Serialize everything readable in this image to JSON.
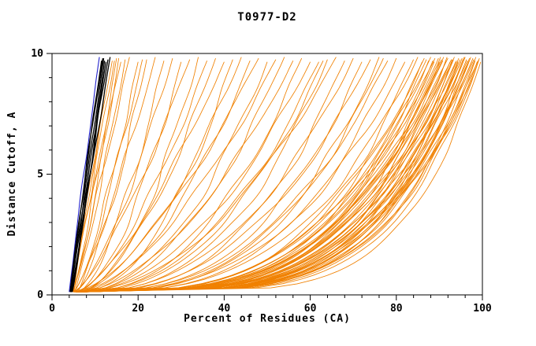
{
  "chart_data": {
    "type": "line",
    "title": "T0977-D2",
    "xlabel": "Percent of Residues (CA)",
    "ylabel": "Distance Cutoff, A",
    "xlim": [
      0,
      100
    ],
    "ylim": [
      0,
      10
    ],
    "xticks": [
      0,
      20,
      40,
      60,
      80,
      100
    ],
    "x_minor_step": 4,
    "yticks": [
      0,
      5,
      10
    ],
    "y_minor_step": 1,
    "y_curve_start": 0.12,
    "y_curve_top": 9.65,
    "colors": [
      "#f08000",
      "#000000",
      "#2323cc"
    ],
    "color_names": [
      "orange",
      "black",
      "blue"
    ],
    "legend": "none",
    "grid": false,
    "series_note": "each curve = [x_at_bottom_pct, x_at_top_pct, shape_exponent, wiggle_amplitude, color_index]",
    "curves": [
      [
        5.0,
        20,
        0.75,
        1.0,
        0
      ],
      [
        5.5,
        22,
        0.7,
        1.2,
        0
      ],
      [
        5.0,
        24,
        0.8,
        1.0,
        0
      ],
      [
        6.0,
        26,
        0.65,
        1.3,
        0
      ],
      [
        5.2,
        28,
        0.7,
        1.1,
        0
      ],
      [
        5.8,
        30,
        0.6,
        1.4,
        0
      ],
      [
        5.0,
        32,
        0.75,
        1.2,
        0
      ],
      [
        6.2,
        34,
        0.55,
        1.5,
        0
      ],
      [
        5.4,
        36,
        0.65,
        1.3,
        0
      ],
      [
        6.0,
        38,
        0.6,
        1.4,
        0
      ],
      [
        5.6,
        40,
        0.7,
        1.2,
        0
      ],
      [
        6.4,
        42,
        0.5,
        1.6,
        0
      ],
      [
        5.8,
        44,
        0.6,
        1.4,
        0
      ],
      [
        6.0,
        46,
        0.55,
        1.5,
        0
      ],
      [
        5.2,
        48,
        0.65,
        1.3,
        0
      ],
      [
        6.6,
        50,
        0.5,
        1.6,
        0
      ],
      [
        5.4,
        52,
        0.6,
        1.4,
        0
      ],
      [
        6.2,
        54,
        0.5,
        1.5,
        0
      ],
      [
        5.6,
        56,
        0.55,
        1.4,
        0
      ],
      [
        6.8,
        58,
        0.45,
        1.6,
        0
      ],
      [
        5.8,
        60,
        0.5,
        1.5,
        0
      ],
      [
        6.0,
        21,
        0.85,
        0.9,
        0
      ],
      [
        4.5,
        13.5,
        0.95,
        0.5,
        0
      ],
      [
        4.8,
        14.5,
        1.0,
        0.6,
        0
      ],
      [
        5.0,
        15.0,
        0.9,
        0.6,
        0
      ],
      [
        4.6,
        16.0,
        1.05,
        0.7,
        0
      ],
      [
        5.2,
        17.0,
        0.85,
        0.7,
        0
      ],
      [
        4.9,
        18.0,
        0.95,
        0.8,
        0
      ],
      [
        5.1,
        14.0,
        1.1,
        0.5,
        0
      ],
      [
        4.7,
        15.5,
        0.8,
        0.6,
        0
      ],
      [
        6.0,
        62,
        0.45,
        1.5,
        0
      ],
      [
        6.5,
        64,
        0.4,
        1.6,
        0
      ],
      [
        5.5,
        66,
        0.5,
        1.4,
        0
      ],
      [
        7.0,
        68,
        0.38,
        1.7,
        0
      ],
      [
        6.0,
        70,
        0.42,
        1.5,
        0
      ],
      [
        6.5,
        72,
        0.36,
        1.6,
        0
      ],
      [
        5.8,
        74,
        0.4,
        1.5,
        0
      ],
      [
        7.2,
        76,
        0.34,
        1.7,
        0
      ],
      [
        6.2,
        78,
        0.38,
        1.5,
        0
      ],
      [
        6.8,
        80,
        0.33,
        1.6,
        0
      ],
      [
        5.6,
        82,
        0.36,
        1.4,
        0
      ],
      [
        7.0,
        84,
        0.3,
        1.6,
        0
      ],
      [
        6.4,
        85,
        0.34,
        1.5,
        0
      ],
      [
        6.6,
        63,
        0.44,
        1.5,
        0
      ],
      [
        5.9,
        77,
        0.35,
        1.5,
        0
      ],
      [
        6.0,
        86,
        0.3,
        1.4,
        0
      ],
      [
        6.5,
        87,
        0.28,
        1.5,
        0
      ],
      [
        7.0,
        88,
        0.32,
        1.3,
        0
      ],
      [
        5.5,
        88.5,
        0.27,
        1.5,
        0
      ],
      [
        6.2,
        89,
        0.3,
        1.4,
        0
      ],
      [
        6.8,
        90,
        0.26,
        1.5,
        0
      ],
      [
        7.4,
        90.5,
        0.3,
        1.3,
        0
      ],
      [
        5.8,
        91,
        0.28,
        1.5,
        0
      ],
      [
        6.4,
        91.5,
        0.25,
        1.4,
        0
      ],
      [
        7.0,
        92,
        0.3,
        1.3,
        0
      ],
      [
        6.0,
        92.5,
        0.27,
        1.5,
        0
      ],
      [
        6.6,
        93,
        0.24,
        1.4,
        0
      ],
      [
        7.2,
        93.5,
        0.28,
        1.3,
        0
      ],
      [
        5.6,
        94,
        0.26,
        1.5,
        0
      ],
      [
        6.2,
        94.5,
        0.23,
        1.4,
        0
      ],
      [
        6.8,
        95,
        0.27,
        1.3,
        0
      ],
      [
        7.4,
        95.5,
        0.25,
        1.4,
        0
      ],
      [
        5.9,
        96,
        0.22,
        1.5,
        0
      ],
      [
        6.5,
        96.5,
        0.26,
        1.3,
        0
      ],
      [
        7.1,
        97,
        0.24,
        1.4,
        0
      ],
      [
        6.1,
        97.5,
        0.22,
        1.3,
        0
      ],
      [
        6.7,
        98,
        0.25,
        1.2,
        0
      ],
      [
        7.3,
        98.5,
        0.23,
        1.3,
        0
      ],
      [
        5.7,
        99,
        0.24,
        1.2,
        0
      ],
      [
        6.3,
        99.3,
        0.22,
        1.1,
        0
      ],
      [
        6.9,
        93.8,
        0.26,
        1.4,
        0
      ],
      [
        6.1,
        94.8,
        0.24,
        1.3,
        0
      ],
      [
        6.5,
        95.8,
        0.26,
        1.2,
        0
      ],
      [
        7.0,
        96.8,
        0.23,
        1.3,
        0
      ],
      [
        6.2,
        97.8,
        0.25,
        1.2,
        0
      ],
      [
        6.6,
        98.8,
        0.22,
        1.2,
        0
      ],
      [
        5.8,
        92.8,
        0.28,
        1.4,
        0
      ],
      [
        6.4,
        91.8,
        0.26,
        1.4,
        0
      ],
      [
        7.2,
        90.8,
        0.29,
        1.3,
        0
      ],
      [
        6.0,
        89.8,
        0.27,
        1.4,
        0
      ],
      [
        6.8,
        88.8,
        0.3,
        1.4,
        0
      ],
      [
        5.9,
        96.3,
        0.21,
        1.2,
        0
      ],
      [
        6.3,
        97.3,
        0.23,
        1.2,
        0
      ],
      [
        6.7,
        98.3,
        0.21,
        1.1,
        0
      ],
      [
        7.1,
        95.3,
        0.24,
        1.2,
        0
      ],
      [
        6.5,
        94.3,
        0.22,
        1.3,
        0
      ],
      [
        6.1,
        93.3,
        0.25,
        1.3,
        0
      ],
      [
        5.6,
        90.3,
        0.26,
        1.5,
        0
      ],
      [
        6.9,
        87.5,
        0.29,
        1.4,
        0
      ],
      [
        6.2,
        86.5,
        0.31,
        1.4,
        0
      ],
      [
        5.0,
        99.6,
        0.18,
        1.0,
        0
      ],
      [
        5.5,
        99.2,
        0.2,
        1.0,
        0
      ],
      [
        4.0,
        11.0,
        1.05,
        0.3,
        2
      ],
      [
        4.2,
        11.5,
        1.05,
        0.3,
        1
      ],
      [
        4.4,
        12.0,
        1.0,
        0.3,
        1
      ],
      [
        4.6,
        12.5,
        0.95,
        0.4,
        1
      ],
      [
        4.3,
        13.0,
        1.1,
        0.3,
        1
      ],
      [
        4.5,
        13.5,
        1.0,
        0.4,
        1
      ],
      [
        4.7,
        12.2,
        0.9,
        0.3,
        1
      ],
      [
        4.4,
        11.8,
        1.15,
        0.3,
        1
      ]
    ]
  }
}
